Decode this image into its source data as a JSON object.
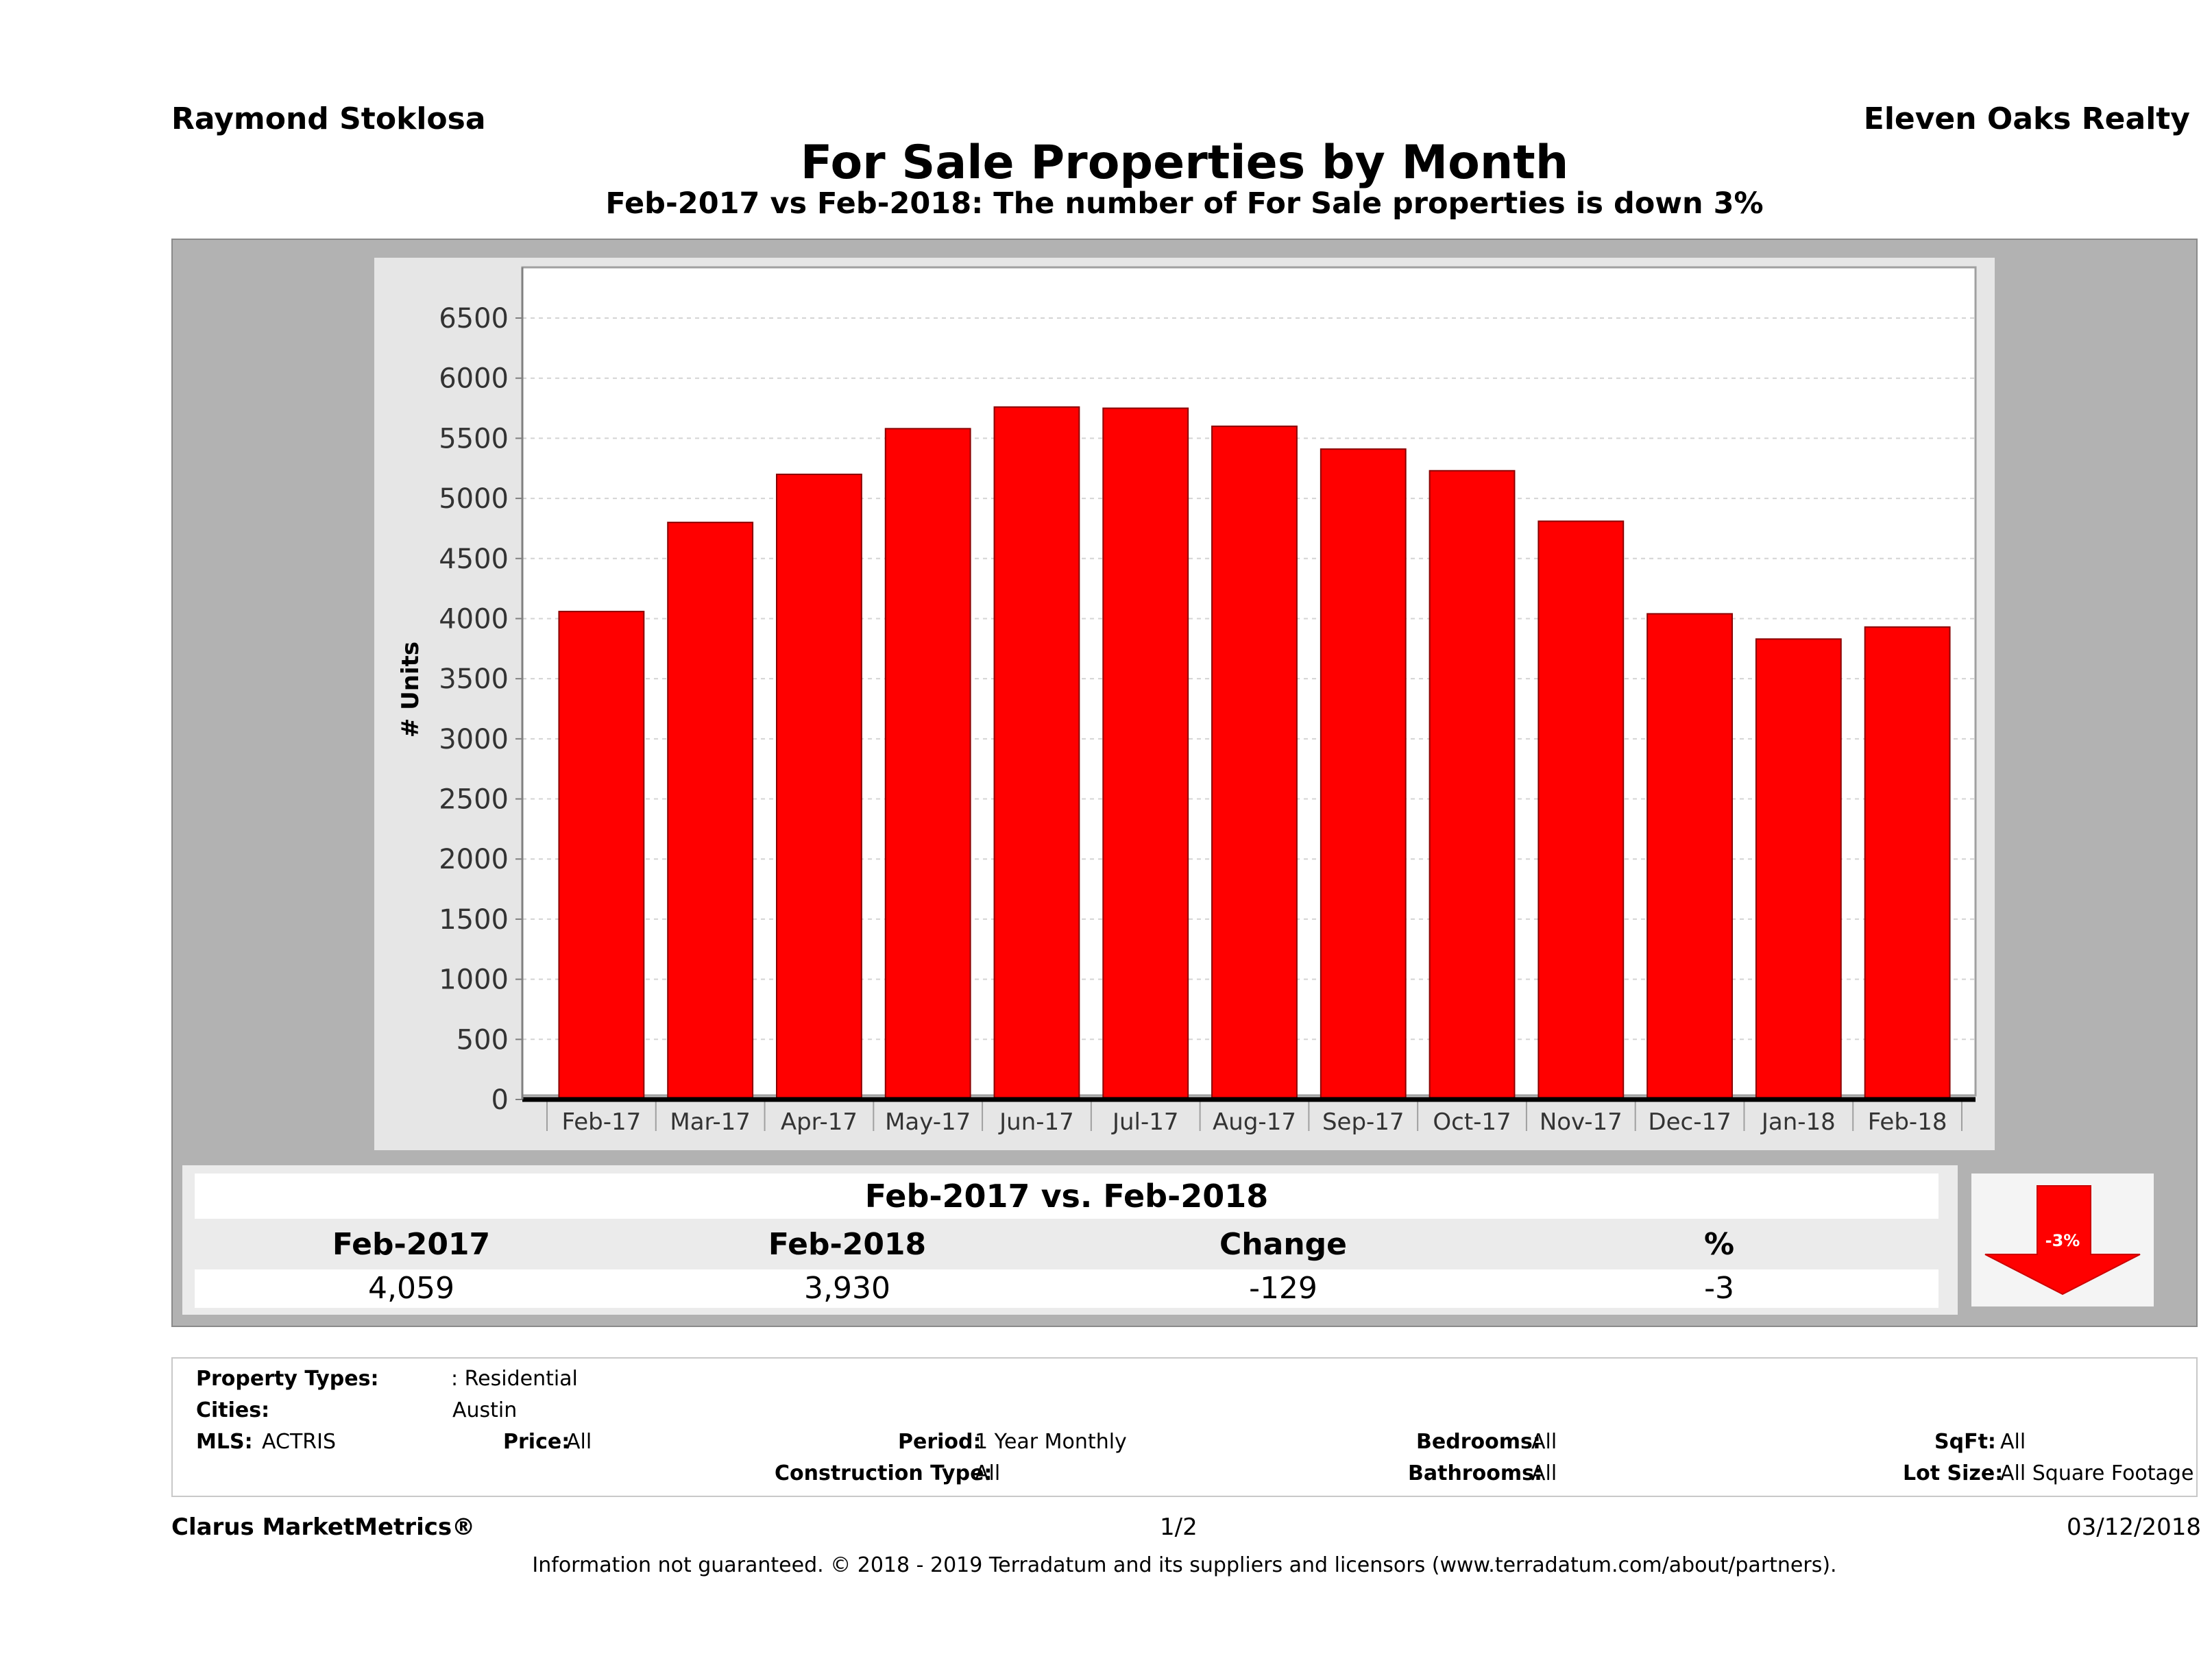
{
  "header": {
    "agent": "Raymond Stoklosa",
    "brokerage": "Eleven Oaks Realty",
    "title": "For Sale Properties by Month",
    "subtitle": "Feb-2017 vs Feb-2018: The number of For Sale  properties is down 3%"
  },
  "chart_data": {
    "type": "bar",
    "categories": [
      "Feb-17",
      "Mar-17",
      "Apr-17",
      "May-17",
      "Jun-17",
      "Jul-17",
      "Aug-17",
      "Sep-17",
      "Oct-17",
      "Nov-17",
      "Dec-17",
      "Jan-18",
      "Feb-18"
    ],
    "values": [
      4059,
      4800,
      5200,
      5580,
      5760,
      5750,
      5600,
      5410,
      5230,
      4810,
      4040,
      3830,
      3930
    ],
    "ylabel": "# Units",
    "ylim": [
      0,
      6500
    ],
    "yticks": [
      0,
      500,
      1000,
      1500,
      2000,
      2500,
      3000,
      3500,
      4000,
      4500,
      5000,
      5500,
      6000,
      6500
    ],
    "grid": true,
    "bar_color": "#ff0000"
  },
  "summary": {
    "title": "Feb-2017 vs. Feb-2018",
    "headers": [
      "Feb-2017",
      "Feb-2018",
      "Change",
      "%"
    ],
    "values": [
      "4,059",
      "3,930",
      "-129",
      "-3"
    ],
    "arrow_label": "-3%",
    "arrow_color": "#ff0000"
  },
  "filters": {
    "property_types_label": "Property Types:",
    "property_types_value": ": Residential",
    "cities_label": "Cities:",
    "cities_value": "Austin",
    "mls_label": "MLS:",
    "mls_value": "ACTRIS",
    "price_label": "Price:",
    "price_value": "All",
    "period_label": "Period:",
    "period_value": "1 Year Monthly",
    "construction_label": "Construction Type:",
    "construction_value": "All",
    "bedrooms_label": "Bedrooms:",
    "bedrooms_value": "All",
    "bathrooms_label": "Bathrooms:",
    "bathrooms_value": "All",
    "sqft_label": "SqFt:",
    "sqft_value": "All",
    "lotsize_label": "Lot Size:",
    "lotsize_value": "All Square Footage"
  },
  "footer": {
    "brand": "Clarus MarketMetrics®",
    "page": "1/2",
    "date": "03/12/2018",
    "disclaimer": "Information not guaranteed. © 2018 - 2019 Terradatum and its suppliers and licensors (www.terradatum.com/about/partners)."
  }
}
